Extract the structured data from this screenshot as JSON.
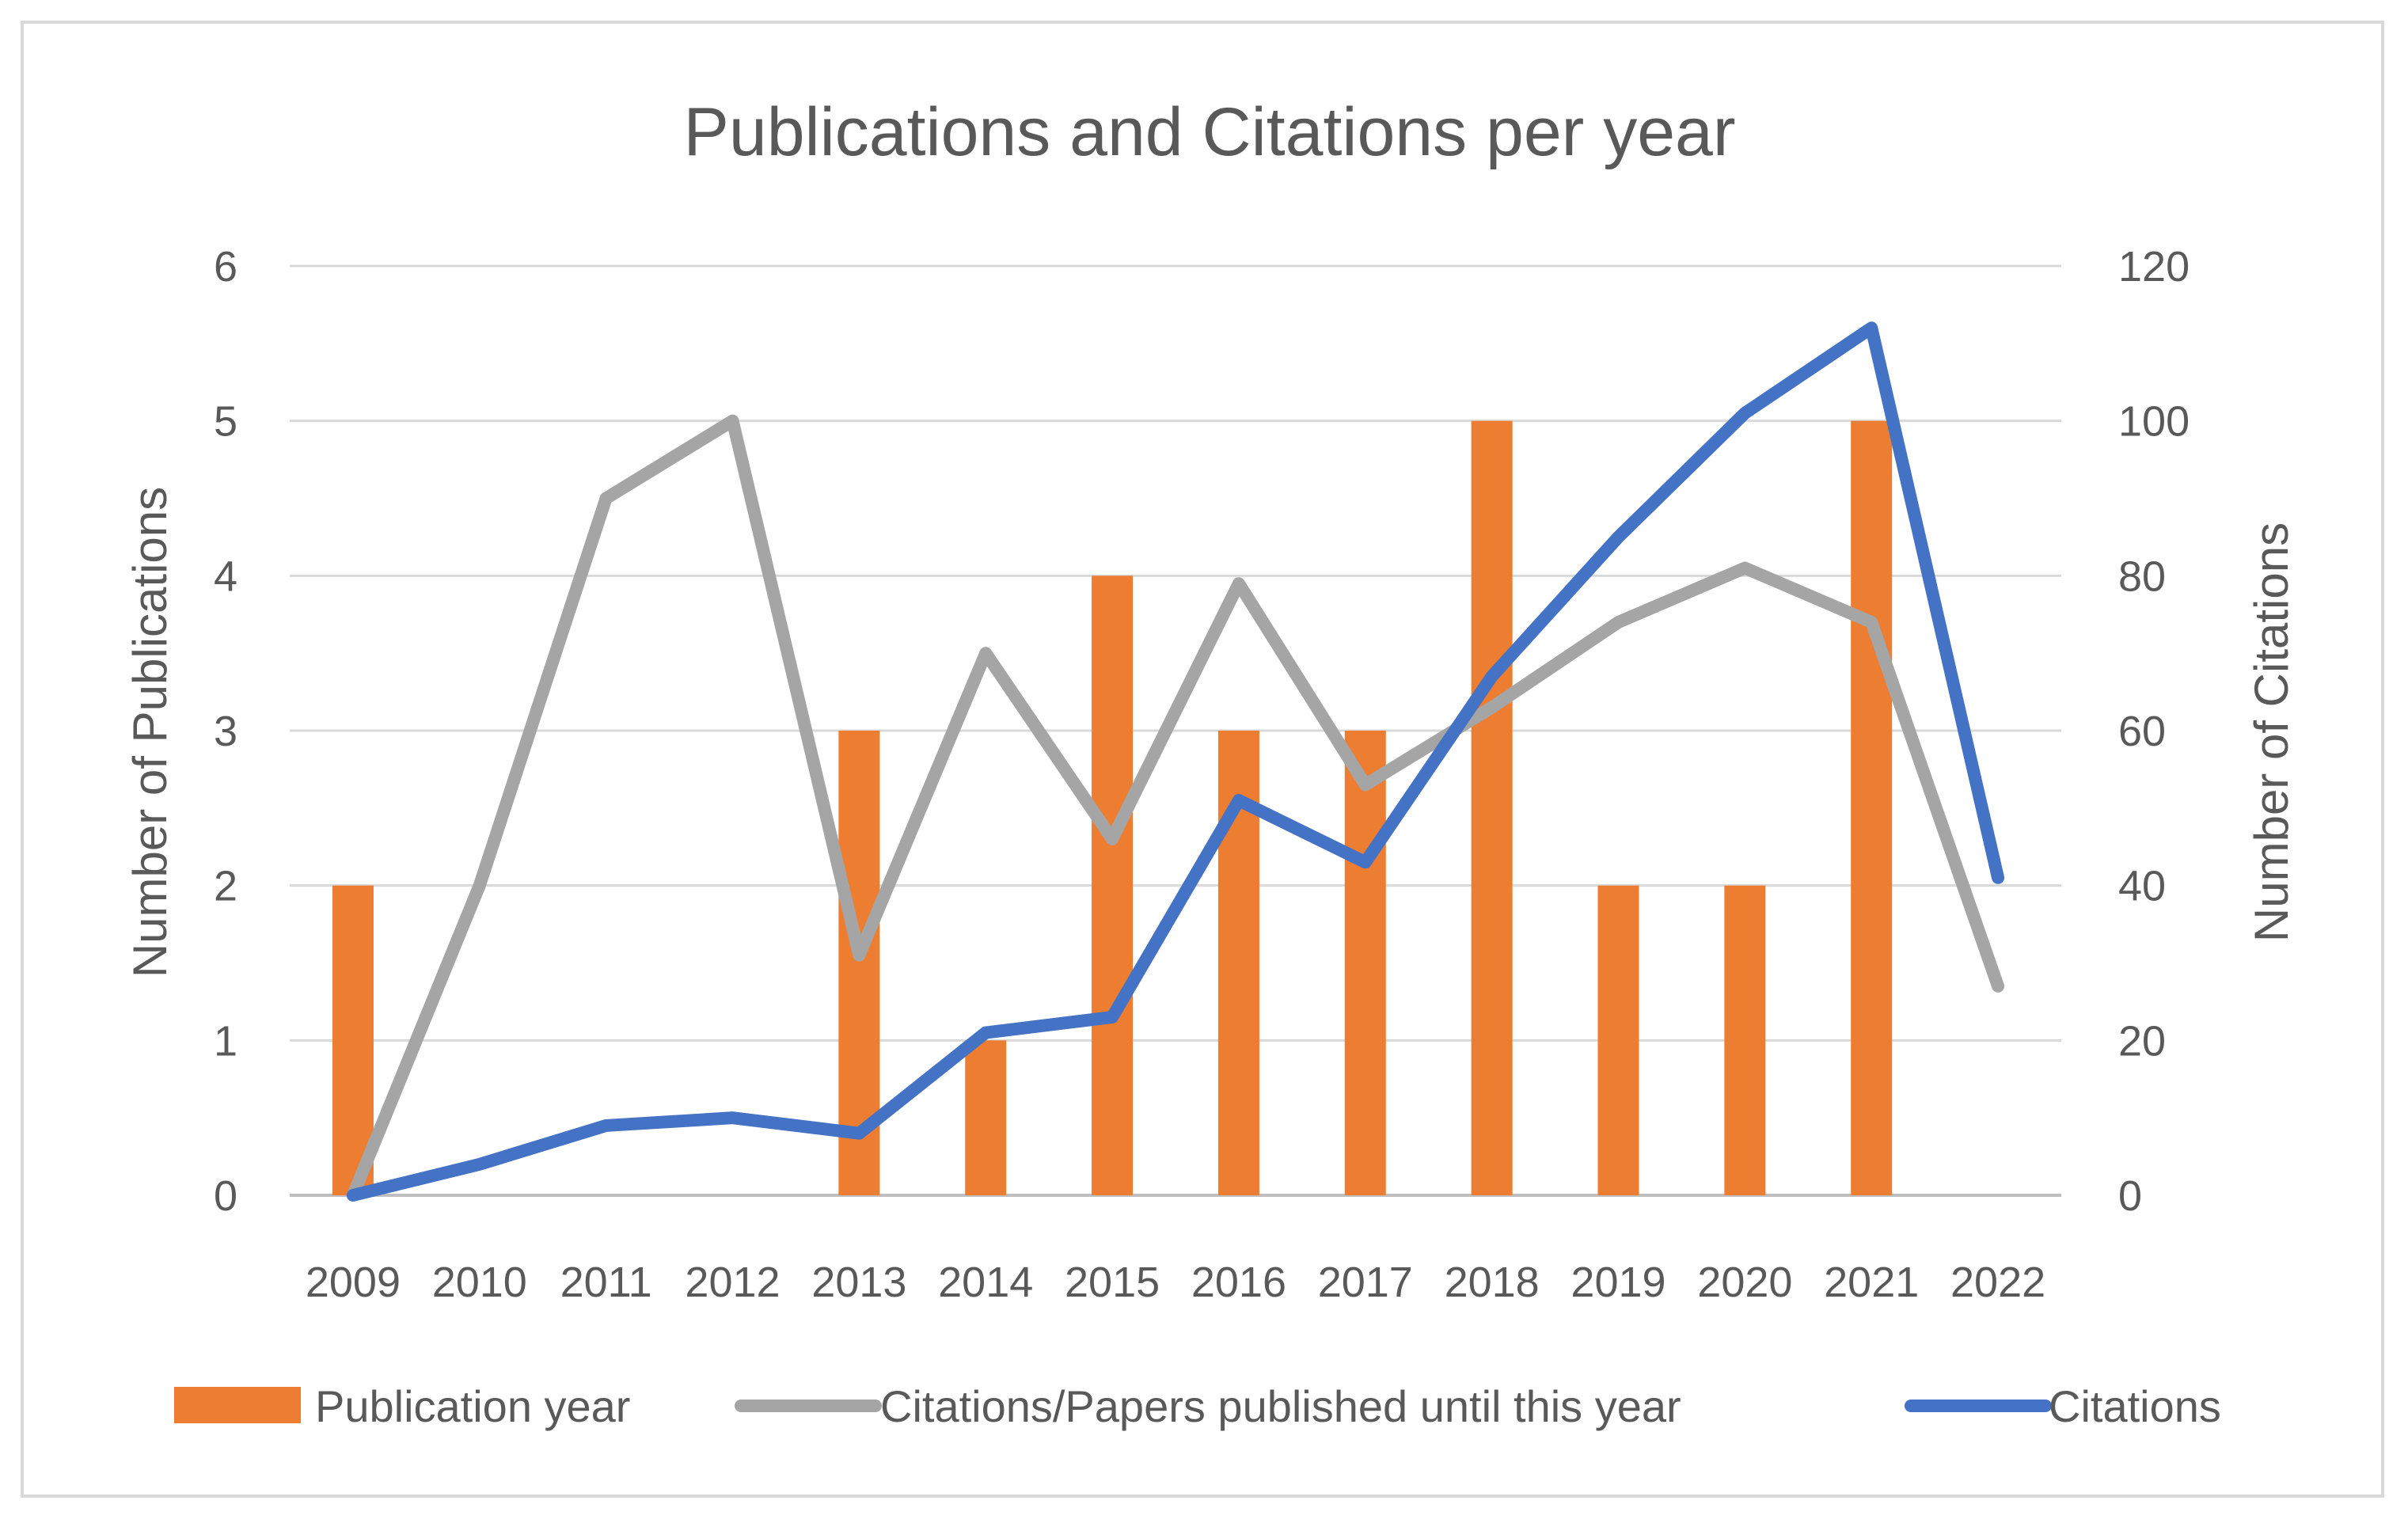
{
  "chart_data": {
    "type": "bar",
    "title": "Publications and Citations per year",
    "categories": [
      "2009",
      "2010",
      "2011",
      "2012",
      "2013",
      "2014",
      "2015",
      "2016",
      "2017",
      "2018",
      "2019",
      "2020",
      "2021",
      "2022"
    ],
    "y_left": {
      "label": "Number of Publications",
      "range": [
        0,
        6
      ],
      "ticks": [
        0,
        1,
        2,
        3,
        4,
        5,
        6
      ]
    },
    "y_right": {
      "label": "Number of Citations",
      "range": [
        0,
        120
      ],
      "ticks": [
        0,
        20,
        40,
        60,
        80,
        100,
        120
      ]
    },
    "grid": true,
    "legend_position": "bottom",
    "series": [
      {
        "name": "Publication year",
        "type": "bar",
        "axis": "left",
        "color": "#ed7d31",
        "values": [
          2,
          0,
          0,
          0,
          3,
          1,
          4,
          3,
          3,
          5,
          2,
          2,
          5,
          0
        ]
      },
      {
        "name": "Citations/Papers published until this year",
        "type": "line",
        "axis": "right",
        "color": "#a5a5a5",
        "values": [
          0,
          40,
          90,
          100,
          31,
          70,
          46,
          79,
          53,
          63,
          74,
          81,
          74,
          27
        ]
      },
      {
        "name": "Citations",
        "type": "line",
        "axis": "right",
        "color": "#4472c4",
        "values": [
          0,
          4,
          9,
          10,
          8,
          21,
          23,
          51,
          43,
          67,
          85,
          101,
          112,
          41
        ]
      }
    ]
  }
}
